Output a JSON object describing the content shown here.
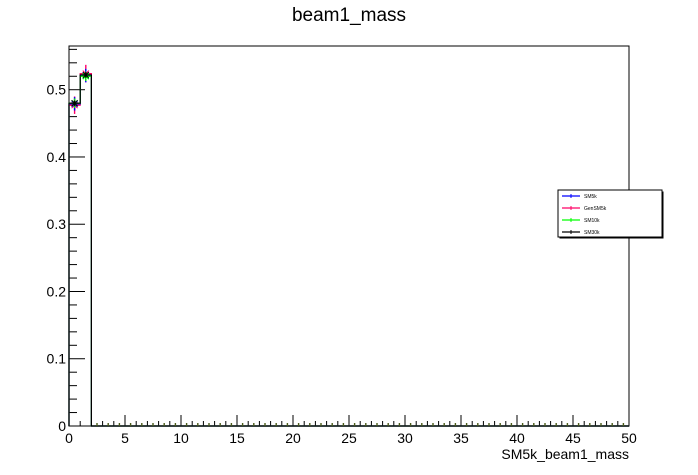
{
  "chart_data": {
    "type": "histogram",
    "title": "beam1_mass",
    "xlabel": "SM5k_beam1_mass",
    "ylabel": "",
    "xlim": [
      0,
      50
    ],
    "ylim": [
      0,
      0.565
    ],
    "x_ticks": [
      "0",
      "5",
      "10",
      "15",
      "20",
      "25",
      "30",
      "35",
      "40",
      "45",
      "50"
    ],
    "y_ticks": [
      "0",
      "0.1",
      "0.2",
      "0.3",
      "0.4",
      "0.5"
    ],
    "bin_edges": [
      0,
      1,
      2,
      3,
      4,
      5,
      6,
      7,
      8,
      9,
      10,
      11,
      12,
      13,
      14,
      15,
      16,
      17,
      18,
      19,
      20,
      21,
      22,
      23,
      24,
      25,
      26,
      27,
      28,
      29,
      30,
      31,
      32,
      33,
      34,
      35,
      36,
      37,
      38,
      39,
      40,
      41,
      42,
      43,
      44,
      45,
      46,
      47,
      48,
      49,
      50
    ],
    "bin_values_first": [
      0.48,
      0.522
    ],
    "series": [
      {
        "name": "SM5k",
        "color": "#0000ff",
        "values": [
          0.479,
          0.521
        ],
        "errors": [
          0.01,
          0.01
        ]
      },
      {
        "name": "GenSM5k",
        "color": "#ff0066",
        "values": [
          0.477,
          0.524
        ],
        "errors": [
          0.013,
          0.013
        ]
      },
      {
        "name": "SM10k",
        "color": "#00ff00",
        "values": [
          0.48,
          0.52
        ],
        "errors": [
          0.007,
          0.007
        ]
      },
      {
        "name": "SM30k",
        "color": "#000000",
        "values": [
          0.48,
          0.522
        ],
        "errors": [
          0.004,
          0.004
        ]
      }
    ],
    "legend_position": "right",
    "grid": false
  }
}
